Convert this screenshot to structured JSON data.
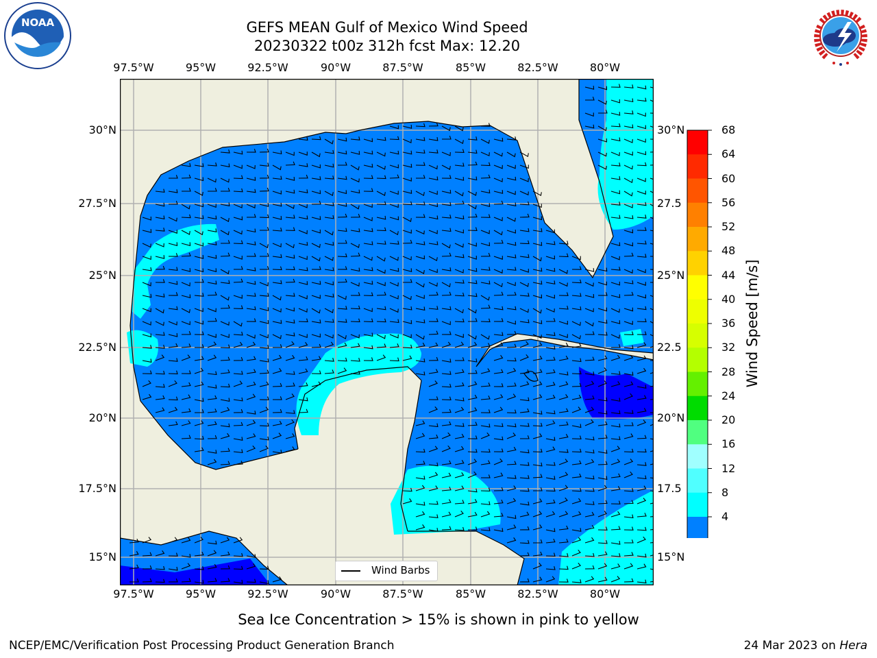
{
  "title": {
    "line1": "GEFS MEAN Gulf of Mexico Wind Speed",
    "line2": "20230322 t00z 312h fcst   Max: 12.20"
  },
  "axes": {
    "lon_ticks": [
      "97.5°W",
      "95°W",
      "92.5°W",
      "90°W",
      "87.5°W",
      "85°W",
      "82.5°W",
      "80°W"
    ],
    "lat_ticks": [
      "30°N",
      "27.5°N",
      "25°N",
      "22.5°N",
      "20°N",
      "17.5°N",
      "15°N"
    ],
    "lat_ticks_right": [
      "30°N",
      "27.5",
      "25°N",
      "22.5",
      "20°N",
      "17.5",
      "15°N"
    ]
  },
  "colorbar": {
    "label": "Wind Speed [m/s]",
    "ticks": [
      "68",
      "64",
      "60",
      "56",
      "52",
      "48",
      "44",
      "40",
      "36",
      "32",
      "28",
      "24",
      "20",
      "16",
      "12",
      "8",
      "4"
    ],
    "colors": [
      "#ff0000",
      "#ff2a00",
      "#ff5500",
      "#ff8000",
      "#ffaa00",
      "#ffd200",
      "#ffff00",
      "#eeff00",
      "#d6ff00",
      "#b4ff00",
      "#64f000",
      "#00dc00",
      "#50ff80",
      "#a0ffff",
      "#50ffff",
      "#00ffff",
      "#0080ff"
    ],
    "under_color": "#0000ff"
  },
  "legend": {
    "label": "Wind Barbs"
  },
  "caption": "Sea Ice Concentration > 15% is shown in pink to yellow",
  "footer": {
    "left": "NCEP/EMC/Verification Post Processing Product Generation Branch",
    "right_date": "24 Mar 2023 on ",
    "right_host": "Hera"
  },
  "logos": {
    "noaa_text": "NOAA",
    "nws_text": "NATIONAL WEATHER SERVICE"
  },
  "map_colors": {
    "land": "#efefdf",
    "sea": "#0080ff",
    "calm": "#00ffff",
    "strong_low": "#0000ff",
    "grid": "#b0b0b0"
  }
}
